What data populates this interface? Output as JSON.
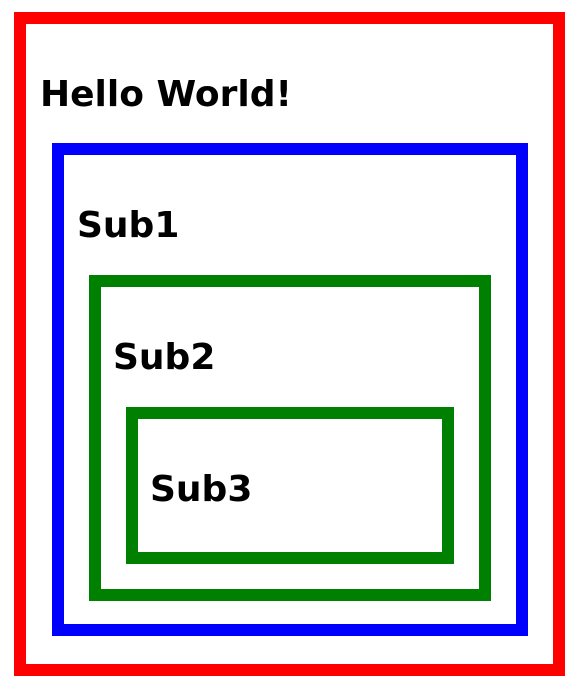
{
  "colors": {
    "outer_border": "#ff0000",
    "sub1_border": "#0000ff",
    "sub2_border": "#008000",
    "sub3_border": "#008000"
  },
  "main": {
    "title": "Hello World!",
    "sub1": {
      "label": "Sub1",
      "sub2": {
        "label": "Sub2",
        "sub3": {
          "label": "Sub3"
        }
      }
    }
  }
}
